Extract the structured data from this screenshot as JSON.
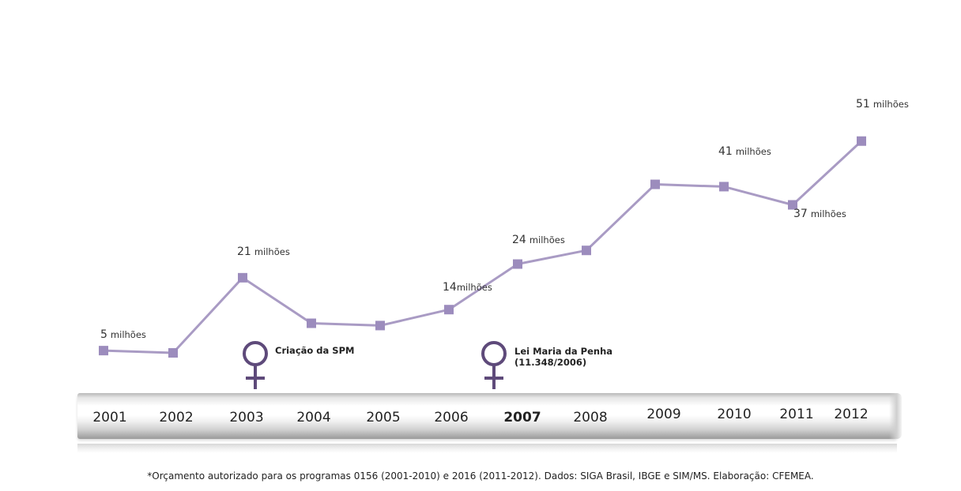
{
  "chart_data": {
    "type": "line",
    "x": [
      "2001",
      "2002",
      "2003",
      "2004",
      "2005",
      "2006",
      "2007",
      "2008",
      "2009",
      "2010",
      "2011",
      "2012"
    ],
    "values": [
      5,
      4.5,
      21,
      11,
      10.5,
      14,
      24,
      27,
      41.5,
      41,
      37,
      51
    ],
    "unit_label": "milhões",
    "data_labels": [
      {
        "x": "2001",
        "value": "5",
        "unit": "milhões"
      },
      {
        "x": "2003",
        "value": "21",
        "unit": "milhões"
      },
      {
        "x": "2006",
        "value": "14",
        "unit": "milhões"
      },
      {
        "x": "2007",
        "value": "24",
        "unit": "milhões"
      },
      {
        "x": "2010",
        "value": "41",
        "unit": "milhões"
      },
      {
        "x": "2011",
        "value": "37",
        "unit": "milhões"
      },
      {
        "x": "2012",
        "value": "51",
        "unit": "milhões"
      }
    ],
    "grid": false,
    "line_color": "#a99bc4",
    "marker_color": "#9c8cbd"
  },
  "timeline": {
    "years": [
      "2001",
      "2002",
      "2003",
      "2004",
      "2005",
      "2006",
      "2007",
      "2008",
      "2009",
      "2010",
      "2011",
      "2012"
    ],
    "highlight_year": "2007",
    "events": [
      {
        "year": "2003",
        "label_lines": [
          "Criação da SPM"
        ],
        "icon": "female-symbol-icon"
      },
      {
        "year": "2007",
        "label_lines": [
          "Lei Maria da Penha",
          "(11.348/2006)"
        ],
        "icon": "female-symbol-icon"
      }
    ],
    "event_color": "#5e4a7a"
  },
  "footnote": "*Orçamento autorizado para os programas 0156 (2001-2010) e 2016 (2011-2012). Dados: SIGA Brasil, IBGE e SIM/MS. Elaboração: CFEMEA."
}
